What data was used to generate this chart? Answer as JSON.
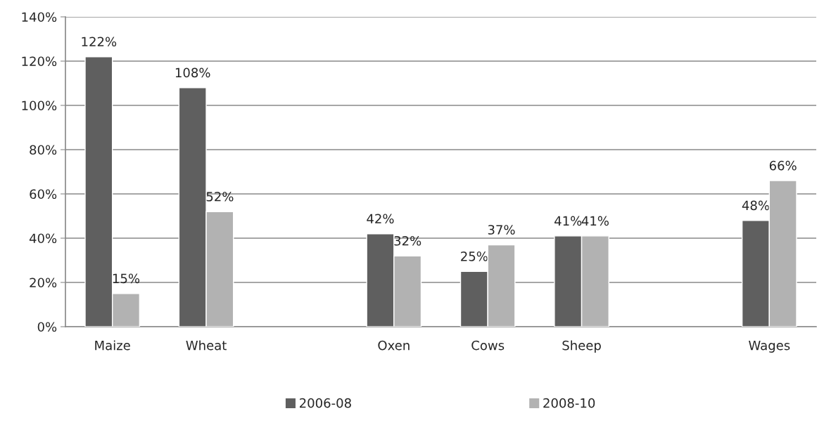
{
  "chart_data": {
    "type": "bar",
    "categories": [
      "Maize",
      "Wheat",
      null,
      "Oxen",
      "Cows",
      "Sheep",
      null,
      "Wages"
    ],
    "series": [
      {
        "name": "2006-08",
        "color": "#5f5f5f",
        "values": [
          122,
          108,
          null,
          42,
          25,
          41,
          null,
          48
        ],
        "value_labels": [
          "122%",
          "108%",
          null,
          "42%",
          "25%",
          "41%",
          null,
          "48%"
        ]
      },
      {
        "name": "2008-10",
        "color": "#b2b2b2",
        "values": [
          15,
          52,
          null,
          32,
          37,
          41,
          null,
          66
        ],
        "value_labels": [
          "15%",
          "52%",
          null,
          "32%",
          "37%",
          "41%",
          null,
          "66%"
        ]
      }
    ],
    "ylim": [
      0,
      140
    ],
    "yticks": [
      {
        "value": 0,
        "label": "0%"
      },
      {
        "value": 20,
        "label": "20%"
      },
      {
        "value": 40,
        "label": "40%"
      },
      {
        "value": 60,
        "label": "60%"
      },
      {
        "value": 80,
        "label": "80%"
      },
      {
        "value": 100,
        "label": "100%"
      },
      {
        "value": 120,
        "label": "120%"
      },
      {
        "value": 140,
        "label": "140%"
      }
    ],
    "grid": "y",
    "legend": "bottom"
  }
}
